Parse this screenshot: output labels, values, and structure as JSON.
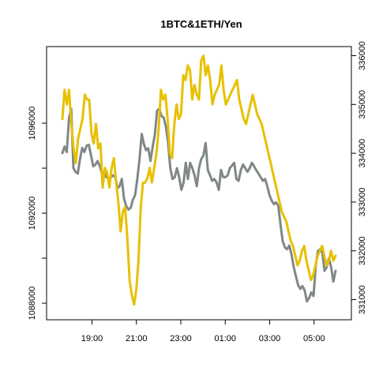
{
  "chart_data": {
    "type": "line",
    "title": "1BTC&1ETH/Yen",
    "xlabel": "",
    "ylabel": "",
    "x_ticks": [
      "19:00",
      "21:00",
      "23:00",
      "01:00",
      "03:00",
      "05:00"
    ],
    "x_range_hours": [
      17.667,
      29.967
    ],
    "left_axis": {
      "ylim": [
        1873000,
        1098000
      ],
      "ticks": [
        1088000,
        1092000,
        1096000
      ]
    },
    "right_axis": {
      "ylim": [
        330800,
        336200
      ],
      "ticks": [
        331000,
        332000,
        333000,
        334000,
        335000,
        336000
      ]
    },
    "grid": false,
    "series": [
      {
        "axis": "left",
        "color": "#808887",
        "values": [
          1094667,
          1094960,
          1094720,
          1096240,
          1096640,
          1094000,
          1093840,
          1093760,
          1094400,
          1094900,
          1094720,
          1095000,
          1095040,
          1094560,
          1094080,
          1094160,
          1094320,
          1094080,
          1093760,
          1093840,
          1093600,
          1093520,
          1093600,
          1093680,
          1093600,
          1093120,
          1093200,
          1093520,
          1092640,
          1092320,
          1092160,
          1092240,
          1092600,
          1092800,
          1093520,
          1094400,
          1095520,
          1095080,
          1094800,
          1094880,
          1094320,
          1094960,
          1095520,
          1096560,
          1096640,
          1096320,
          1096240,
          1095840,
          1095120,
          1094000,
          1093520,
          1093600,
          1094000,
          1093600,
          1093040,
          1093360,
          1094240,
          1093520,
          1094240,
          1094000,
          1093680,
          1093200,
          1094000,
          1094400,
          1094560,
          1095120,
          1093920,
          1093680,
          1093440,
          1093520,
          1093360,
          1093040,
          1093920,
          1093600,
          1093600,
          1093680,
          1094000,
          1094120,
          1094240,
          1093520,
          1093440,
          1093920,
          1094160,
          1094000,
          1093840,
          1094000,
          1094240,
          1094080,
          1093920,
          1093760,
          1093600,
          1093440,
          1093520,
          1093200,
          1092800,
          1092560,
          1092400,
          1092480,
          1092320,
          1091520,
          1090760,
          1090480,
          1090400,
          1090560,
          1090160,
          1089600,
          1089200,
          1088800,
          1088640,
          1088760,
          1088560,
          1088080,
          1088240,
          1088480,
          1088320,
          1089680,
          1090320,
          1090400,
          1090240,
          1089440,
          1089600,
          1090000,
          1089600,
          1088960,
          1089440
        ]
      },
      {
        "axis": "right",
        "color": "#e8c000",
        "values": [
          334700,
          335300,
          335000,
          335300,
          334600,
          334100,
          333800,
          334300,
          334500,
          334700,
          335200,
          335100,
          335100,
          334400,
          334200,
          334600,
          334100,
          334200,
          333300,
          333700,
          333600,
          333300,
          333700,
          333900,
          333400,
          333000,
          332400,
          332800,
          332900,
          332300,
          331400,
          331100,
          330900,
          331200,
          331800,
          332900,
          333400,
          333400,
          333500,
          333700,
          333400,
          333700,
          334000,
          334500,
          335300,
          335100,
          335200,
          334700,
          334000,
          333900,
          334600,
          335000,
          334700,
          334800,
          335600,
          335500,
          335800,
          335700,
          335100,
          335400,
          335200,
          335100,
          335900,
          336000,
          335600,
          335800,
          335500,
          335000,
          335200,
          335300,
          335400,
          335800,
          335300,
          335000,
          335100,
          335200,
          335300,
          335400,
          335500,
          335100,
          334900,
          334700,
          334600,
          334800,
          335000,
          335200,
          335000,
          334800,
          334700,
          334600,
          334400,
          334200,
          334000,
          333800,
          333600,
          333400,
          333200,
          333000,
          332800,
          332700,
          332600,
          332400,
          332200,
          332100,
          331900,
          331700,
          331800,
          332000,
          332100,
          331800,
          331600,
          331400,
          331500,
          331700,
          331900,
          332000,
          332100,
          331900,
          331700,
          331800,
          332000,
          331800,
          331900
        ]
      }
    ]
  }
}
